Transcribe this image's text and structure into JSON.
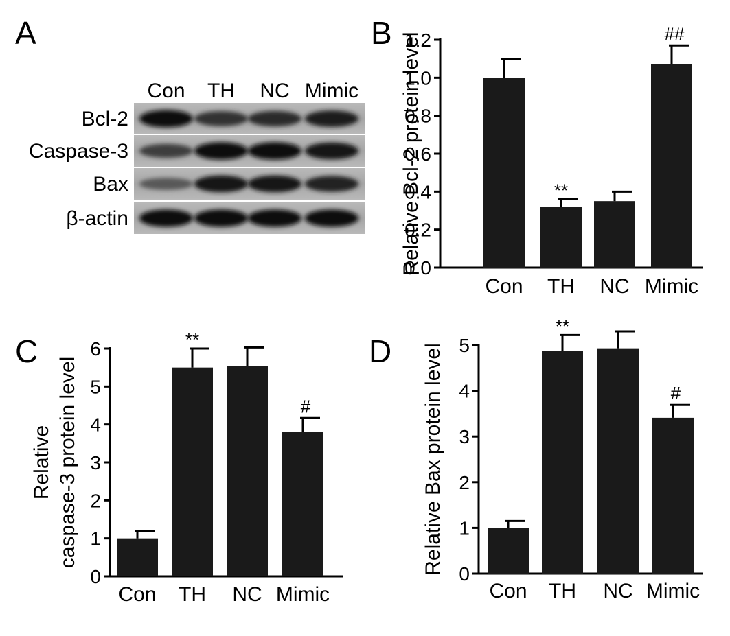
{
  "figure": {
    "panels": [
      {
        "letter": "A"
      },
      {
        "letter": "B"
      },
      {
        "letter": "C"
      },
      {
        "letter": "D"
      }
    ]
  },
  "blot": {
    "lanes": [
      "Con",
      "TH",
      "NC",
      "Mimic"
    ],
    "proteins": [
      "Bcl-2",
      "Caspase-3",
      "Bax",
      "β-actin"
    ],
    "band_intensity": [
      [
        0.95,
        0.7,
        0.75,
        0.85
      ],
      [
        0.6,
        0.95,
        0.95,
        0.9
      ],
      [
        0.4,
        0.9,
        0.9,
        0.8
      ],
      [
        0.95,
        0.95,
        0.95,
        0.95
      ]
    ]
  },
  "chart_data": [
    {
      "type": "bar",
      "panel": "B",
      "categories": [
        "Con",
        "TH",
        "NC",
        "Mimic"
      ],
      "values": [
        1.0,
        0.32,
        0.35,
        1.07
      ],
      "errors": [
        0.1,
        0.04,
        0.05,
        0.1
      ],
      "annotations": [
        "",
        "**",
        "",
        "##"
      ],
      "ylabel": "Relative Bcl-2 protein level",
      "ylim": [
        0,
        1.2
      ],
      "yticks": [
        "0.0",
        "0.2",
        "0.4",
        "0.6",
        "0.8",
        "1.0",
        "1.2"
      ],
      "grid": false,
      "bar_color": "#1a1a1a"
    },
    {
      "type": "bar",
      "panel": "C",
      "categories": [
        "Con",
        "TH",
        "NC",
        "Mimic"
      ],
      "values": [
        1.0,
        5.5,
        5.53,
        3.8
      ],
      "errors": [
        0.2,
        0.5,
        0.5,
        0.37
      ],
      "annotations": [
        "",
        "**",
        "",
        "#"
      ],
      "ylabel_lines": [
        "Relative",
        "caspase-3 protein level"
      ],
      "ylim": [
        0,
        6
      ],
      "yticks": [
        "0",
        "1",
        "2",
        "3",
        "4",
        "5",
        "6"
      ],
      "grid": false,
      "bar_color": "#1a1a1a"
    },
    {
      "type": "bar",
      "panel": "D",
      "categories": [
        "Con",
        "TH",
        "NC",
        "Mimic"
      ],
      "values": [
        1.0,
        4.87,
        4.93,
        3.41
      ],
      "errors": [
        0.15,
        0.35,
        0.37,
        0.28
      ],
      "annotations": [
        "",
        "**",
        "",
        "#"
      ],
      "ylabel": "Relative Bax protein level",
      "ylim": [
        0,
        5
      ],
      "yticks": [
        "0",
        "1",
        "2",
        "3",
        "4",
        "5"
      ],
      "grid": false,
      "bar_color": "#1a1a1a"
    }
  ]
}
